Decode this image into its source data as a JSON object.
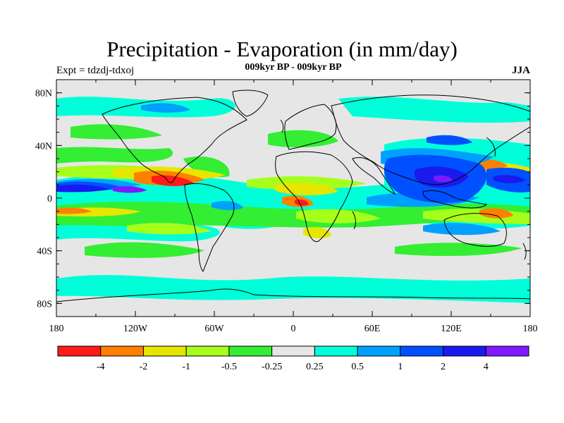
{
  "header": {
    "title": "Precipitation - Evaporation (in mm/day)",
    "subtitle": "009kyr BP - 009kyr BP",
    "experiment": "Expt = tdzdj-tdxoj",
    "season": "JJA"
  },
  "map": {
    "lon_range": [
      -180,
      180
    ],
    "lat_range": [
      -90,
      90
    ],
    "lat_labels": [
      {
        "lat": 80,
        "text": "80N"
      },
      {
        "lat": 40,
        "text": "40N"
      },
      {
        "lat": 0,
        "text": "0"
      },
      {
        "lat": -40,
        "text": "40S"
      },
      {
        "lat": -80,
        "text": "80S"
      }
    ],
    "lon_labels": [
      {
        "lon": -180,
        "text": "180"
      },
      {
        "lon": -120,
        "text": "120W"
      },
      {
        "lon": -60,
        "text": "60W"
      },
      {
        "lon": 0,
        "text": "0"
      },
      {
        "lon": 60,
        "text": "60E"
      },
      {
        "lon": 120,
        "text": "120E"
      },
      {
        "lon": 180,
        "text": "180"
      }
    ],
    "background_color": "#e6e6e6",
    "coast_color": "#000000"
  },
  "colorbar": {
    "colors": [
      "#ff1a1a",
      "#ff8000",
      "#e6e600",
      "#a6ff1a",
      "#33ee33",
      "#e6e6e6",
      "#00ffd8",
      "#00a0ff",
      "#0050ff",
      "#1a1aee",
      "#7d1aff"
    ],
    "labels": [
      "-4",
      "-2",
      "-1",
      "-0.5",
      "-0.25",
      "0.25",
      "0.5",
      "1",
      "2",
      "4"
    ]
  }
}
